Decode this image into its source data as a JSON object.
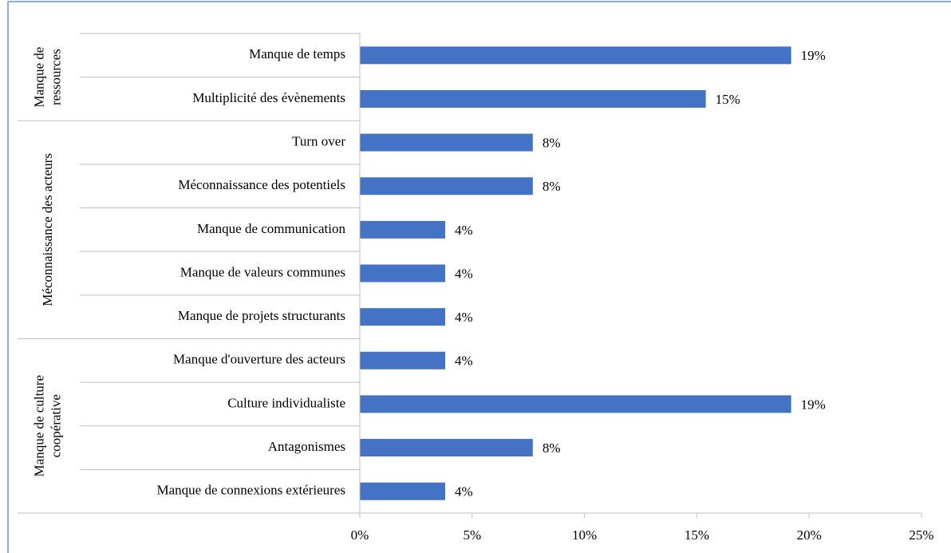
{
  "chart_data": {
    "type": "bar",
    "orientation": "horizontal",
    "color": "#4472c4",
    "groups": [
      {
        "label": [
          "Manque de",
          "ressources"
        ],
        "categories": [
          "Manque de temps",
          "Multiplicité des évènements"
        ],
        "values": [
          19.2,
          15.4
        ],
        "value_labels": [
          "19%",
          "15%"
        ]
      },
      {
        "label": [
          "Méconnaissance des acteurs"
        ],
        "categories": [
          "Turn over",
          "Méconnaissance des potentiels",
          "Manque de communication",
          "Manque de valeurs communes",
          "Manque de projets structurants"
        ],
        "values": [
          7.7,
          7.7,
          3.8,
          3.8,
          3.8
        ],
        "value_labels": [
          "8%",
          "8%",
          "4%",
          "4%",
          "4%"
        ]
      },
      {
        "label": [
          "Manque de culture",
          "coopérative"
        ],
        "categories": [
          "Manque d'ouverture des acteurs",
          "Culture individualiste",
          "Antagonismes",
          "Manque de connexions extérieures"
        ],
        "values": [
          3.8,
          19.2,
          7.7,
          3.8
        ],
        "value_labels": [
          "4%",
          "19%",
          "8%",
          "4%"
        ]
      }
    ],
    "xlim": [
      0,
      25
    ],
    "xticks": [
      {
        "value": 0,
        "label": "0%"
      },
      {
        "value": 5,
        "label": "5%"
      },
      {
        "value": 10,
        "label": "10%"
      },
      {
        "value": 15,
        "label": "15%"
      },
      {
        "value": 20,
        "label": "20%"
      },
      {
        "value": 25,
        "label": "25%"
      }
    ]
  }
}
